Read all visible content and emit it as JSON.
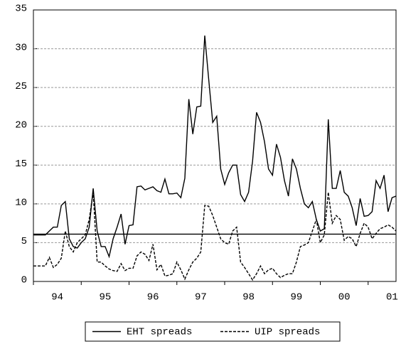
{
  "chart_data": {
    "type": "line",
    "categories": [
      null,
      null,
      null,
      null,
      null,
      null,
      "94",
      null,
      null,
      null,
      null,
      null,
      null,
      null,
      null,
      null,
      null,
      null,
      "95",
      null,
      null,
      null,
      null,
      null,
      null,
      null,
      null,
      null,
      null,
      null,
      "96",
      null,
      null,
      null,
      null,
      null,
      null,
      null,
      null,
      null,
      null,
      null,
      "97",
      null,
      null,
      null,
      null,
      null,
      null,
      null,
      null,
      null,
      null,
      null,
      "98",
      null,
      null,
      null,
      null,
      null,
      null,
      null,
      null,
      null,
      null,
      null,
      "99",
      null,
      null,
      null,
      null,
      null,
      null,
      null,
      null,
      null,
      null,
      null,
      "00",
      null,
      null,
      null,
      null,
      null,
      null,
      null,
      null,
      null,
      null,
      null,
      "01",
      null
    ],
    "series": [
      {
        "name": "EHT spreads",
        "color": "#000000",
        "style": "solid",
        "values": [
          6,
          6,
          6,
          6,
          6.5,
          7,
          7,
          9.8,
          10.3,
          5.5,
          4.5,
          4.3,
          5,
          5.5,
          7,
          12,
          6.5,
          4.5,
          4.5,
          3.2,
          5.5,
          7,
          8.7,
          4.8,
          7.2,
          7.3,
          12.2,
          12.3,
          11.8,
          12,
          12.2,
          11.7,
          11.5,
          13.2,
          11.3,
          11.3,
          11.4,
          10.8,
          13.3,
          23.5,
          19,
          22.5,
          22.6,
          31.7,
          26,
          20.5,
          21.3,
          14.5,
          12.5,
          14,
          15,
          15,
          11.2,
          10.3,
          11.5,
          15.5,
          21.8,
          20.5,
          18,
          14.5,
          13.7,
          17.7,
          16,
          13,
          11,
          15.8,
          14.5,
          12,
          10,
          9.5,
          10.3,
          8,
          6.5,
          6.8,
          20.9,
          12,
          12,
          14.3,
          11.5,
          11,
          9.5,
          7.2,
          10.7,
          8.4,
          8.5,
          9,
          13,
          12,
          13.7,
          9,
          10.8,
          11
        ]
      },
      {
        "name": "UIP spreads",
        "color": "#000000",
        "style": "dashed",
        "values": [
          2,
          2,
          2,
          2,
          3.1,
          1.8,
          2.2,
          3,
          6.5,
          4.5,
          3.8,
          5,
          5.5,
          6,
          8,
          11.5,
          2.5,
          2.5,
          2,
          1.6,
          1.4,
          1.3,
          2.3,
          1.4,
          1.7,
          1.7,
          3.3,
          3.8,
          3.5,
          2.7,
          4.8,
          1.5,
          2.2,
          0.7,
          0.8,
          1,
          2.5,
          1.5,
          0.3,
          1.5,
          2.5,
          3,
          3.8,
          9.8,
          9.7,
          8.5,
          7,
          5.5,
          5,
          4.8,
          6.5,
          7,
          2.5,
          1.8,
          1,
          0.2,
          1,
          2,
          1,
          1.5,
          1.7,
          1,
          0.5,
          0.8,
          1,
          1,
          2.5,
          4.5,
          4.7,
          5,
          6.5,
          8,
          5,
          6,
          11.5,
          7.5,
          8.5,
          8,
          5.3,
          5.8,
          5.5,
          4.5,
          6.2,
          7.5,
          7,
          5.5,
          6.2,
          6.8,
          7,
          7.3,
          7,
          6.5
        ]
      }
    ],
    "hline": 6.1,
    "ylim": [
      0,
      35
    ],
    "yticks": [
      0,
      5,
      10,
      15,
      20,
      25,
      30,
      35
    ],
    "grid": true
  }
}
